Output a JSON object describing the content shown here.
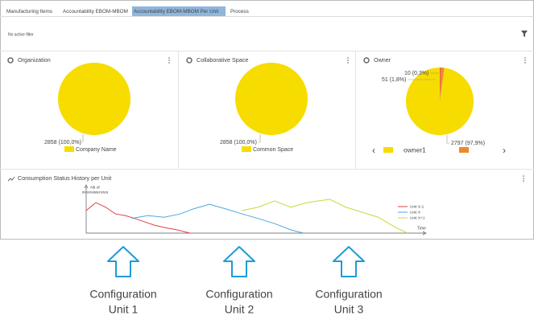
{
  "tabs": [
    {
      "label": "Manufacturing Items"
    },
    {
      "label": "Accountability EBOM-MBOM"
    },
    {
      "label": "Accountability EBOM-MBOM Per Unit",
      "active": true
    },
    {
      "label": "Process"
    }
  ],
  "filter_status": "No active filter",
  "panels": [
    {
      "title": "Organization",
      "chart": {
        "type": "pie",
        "categories": [
          "Company Name"
        ],
        "values": [
          2858
        ],
        "value_labels": [
          "2858 (100,0%)"
        ],
        "colors": [
          "#f7dc00"
        ]
      }
    },
    {
      "title": "Collaborative Space",
      "chart": {
        "type": "pie",
        "categories": [
          "Common Space"
        ],
        "values": [
          2858
        ],
        "value_labels": [
          "2858 (100,0%)"
        ],
        "colors": [
          "#f7dc00"
        ]
      }
    },
    {
      "title": "Owner",
      "chart": {
        "type": "pie",
        "categories": [
          "owner1",
          null,
          null
        ],
        "values": [
          2797,
          51,
          10
        ],
        "value_labels": [
          "2797 (97,9%)",
          "51 (1,8%)",
          "10 (0,3%)"
        ],
        "colors": [
          "#f7dc00",
          "#f0882a",
          "#e0443a"
        ]
      }
    },
    {
      "title": "Consumption Status History per Unit",
      "chart": {
        "type": "line",
        "y_label": [
          "Nb of",
          "inconsistencies"
        ],
        "x_label": "Time",
        "xlim": [
          0,
          100
        ],
        "ylim": [
          0,
          100
        ],
        "series": [
          {
            "name": "Unit X-1",
            "color": "#e04040",
            "x": [
              0,
              3,
              6,
              9,
              12,
              15,
              18,
              21,
              25,
              28,
              32
            ],
            "values": [
              54,
              73,
              62,
              46,
              42,
              35,
              27,
              19,
              12,
              8,
              0
            ]
          },
          {
            "name": "Unit X",
            "color": "#4aa8e0",
            "x": [
              14,
              19,
              24,
              29,
              33,
              38,
              43,
              48,
              53,
              58,
              63,
              67
            ],
            "values": [
              35,
              42,
              38,
              46,
              58,
              69,
              58,
              46,
              35,
              23,
              8,
              0
            ]
          },
          {
            "name": "Unit X+1",
            "color": "#c8d83a",
            "x": [
              48,
              53,
              58,
              63,
              68,
              75,
              80,
              85,
              90,
              95,
              99
            ],
            "values": [
              54,
              62,
              77,
              62,
              73,
              81,
              62,
              50,
              38,
              15,
              0
            ]
          }
        ]
      }
    }
  ],
  "annotations": [
    {
      "lines": [
        "Configuration",
        "Unit 1"
      ]
    },
    {
      "lines": [
        "Configuration",
        "Unit 2"
      ]
    },
    {
      "lines": [
        "Configuration",
        "Unit 3"
      ]
    }
  ]
}
